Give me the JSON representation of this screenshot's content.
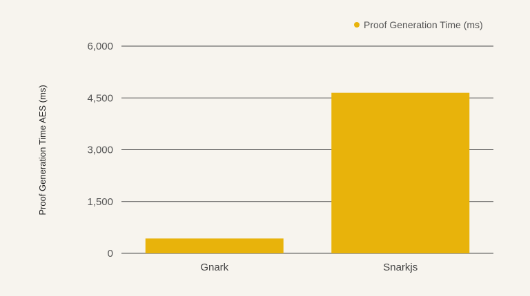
{
  "chart_data": {
    "type": "bar",
    "title": "",
    "xlabel": "",
    "ylabel": "Proof Generation Time AES (ms)",
    "categories": [
      "Gnark",
      "Snarkjs"
    ],
    "series": [
      {
        "name": "Proof Generation Time (ms)",
        "values": [
          430,
          4650
        ],
        "color": "#e8b30b"
      }
    ],
    "ylim": [
      0,
      6000
    ],
    "yticks": [
      0,
      1500,
      3000,
      4500,
      6000
    ],
    "ytick_labels": [
      "0",
      "1,500",
      "3,000",
      "4,500",
      "6,000"
    ],
    "grid": true,
    "legend_position": "top-right"
  },
  "colors": {
    "background": "#f7f4ee",
    "gridline": "#4a4a4a",
    "bar": "#e8b30b"
  }
}
